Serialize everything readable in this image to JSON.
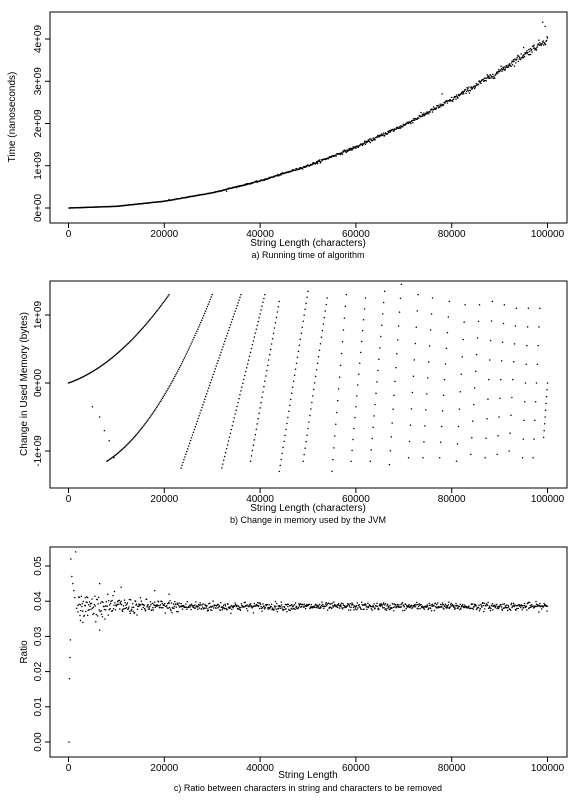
{
  "chart_data": [
    {
      "type": "scatter",
      "title": "",
      "caption": "a) Running time of algorithm",
      "xlabel": "String Length (characters)",
      "ylabel": "Time (nanoseconds)",
      "xlim": [
        0,
        100000
      ],
      "ylim": [
        0,
        4500000000
      ],
      "xticks": [
        0,
        20000,
        40000,
        60000,
        80000,
        100000
      ],
      "xtick_labels": [
        "0",
        "20000",
        "40000",
        "60000",
        "80000",
        "100000"
      ],
      "yticks": [
        0,
        1000000000,
        2000000000,
        3000000000,
        4000000000
      ],
      "ytick_labels": [
        "0e+00",
        "1e+09",
        "2e+09",
        "3e+09",
        "4e+09"
      ],
      "grid": false,
      "legend": "none",
      "series": [
        {
          "description_points": [
            [
              0,
              0
            ],
            [
              10000,
              40000000
            ],
            [
              20000,
              160000000
            ],
            [
              30000,
              360000000
            ],
            [
              40000,
              640000000
            ],
            [
              50000,
              1000000000
            ],
            [
              60000,
              1440000000
            ],
            [
              70000,
              1960000000
            ],
            [
              80000,
              2560000000
            ],
            [
              90000,
              3240000000
            ],
            [
              100000,
              4000000000
            ]
          ],
          "outliers": [
            [
              21000,
              200000000
            ],
            [
              33000,
              400000000
            ],
            [
              36000,
              520000000
            ],
            [
              52000,
              1050000000
            ],
            [
              78000,
              2700000000
            ],
            [
              95000,
              3800000000
            ],
            [
              99000,
              4400000000
            ],
            [
              99500,
              4300000000
            ]
          ]
        }
      ]
    },
    {
      "type": "scatter",
      "title": "",
      "caption": "b) Change in memory used by the JVM",
      "xlabel": "String Length (characters)",
      "ylabel": "Change in Used Memory (bytes)",
      "xlim": [
        0,
        100000
      ],
      "ylim": [
        -1350000000,
        1400000000
      ],
      "xticks": [
        0,
        20000,
        40000,
        60000,
        80000,
        100000
      ],
      "xtick_labels": [
        "0",
        "20000",
        "40000",
        "60000",
        "80000",
        "100000"
      ],
      "yticks": [
        -1000000000,
        0,
        1000000000
      ],
      "ytick_labels": [
        "-1e+09",
        "0e+00",
        "1e+09"
      ],
      "grid": false,
      "legend": "none",
      "segments": [
        {
          "x0": 0,
          "x1": 21000,
          "y0": 0,
          "y1": 1300000000,
          "shape": "curve"
        },
        {
          "x0": 8000,
          "x1": 30000,
          "y0": -1150000000,
          "y1": 1300000000,
          "shape": "curve"
        },
        {
          "x0": 23500,
          "x1": 36000,
          "y0": -1250000000,
          "y1": 1300000000
        },
        {
          "x0": 32000,
          "x1": 41000,
          "y0": -1250000000,
          "y1": 1300000000
        },
        {
          "x0": 38000,
          "x1": 44000,
          "y0": -1150000000,
          "y1": 1200000000
        },
        {
          "x0": 44000,
          "x1": 50000,
          "y0": -1300000000,
          "y1": 1350000000
        },
        {
          "x0": 49000,
          "x1": 54000,
          "y0": -1150000000,
          "y1": 1250000000
        },
        {
          "x0": 55000,
          "x1": 58000,
          "y0": -1300000000,
          "y1": 1300000000
        },
        {
          "x0": 59000,
          "x1": 62000,
          "y0": -1150000000,
          "y1": 1250000000
        },
        {
          "x0": 63000,
          "x1": 66000,
          "y0": -1150000000,
          "y1": 1350000000
        },
        {
          "x0": 67000,
          "x1": 69500,
          "y0": -1200000000,
          "y1": 1450000000
        },
        {
          "x0": 71000,
          "x1": 73000,
          "y0": -1100000000,
          "y1": 1300000000
        },
        {
          "x0": 74000,
          "x1": 76000,
          "y0": -1100000000,
          "y1": 1250000000
        },
        {
          "x0": 77500,
          "x1": 79500,
          "y0": -1100000000,
          "y1": 1200000000
        },
        {
          "x0": 81000,
          "x1": 82800,
          "y0": -1150000000,
          "y1": 1150000000
        },
        {
          "x0": 84000,
          "x1": 85800,
          "y0": -1050000000,
          "y1": 1150000000
        },
        {
          "x0": 87000,
          "x1": 88500,
          "y0": -1100000000,
          "y1": 1200000000
        },
        {
          "x0": 89500,
          "x1": 91000,
          "y0": -1050000000,
          "y1": 1150000000
        },
        {
          "x0": 92000,
          "x1": 93500,
          "y0": -1000000000,
          "y1": 1100000000
        },
        {
          "x0": 94800,
          "x1": 96000,
          "y0": -1100000000,
          "y1": 1100000000
        },
        {
          "x0": 97000,
          "x1": 98400,
          "y0": -1100000000,
          "y1": 1100000000
        },
        {
          "x0": 99200,
          "x1": 100000,
          "y0": -800000000,
          "y1": 0
        }
      ],
      "stray_points": [
        [
          6500,
          -500000000
        ],
        [
          7500,
          -700000000
        ],
        [
          8500,
          -850000000
        ],
        [
          9500,
          -1100000000
        ],
        [
          5000,
          -350000000
        ]
      ]
    },
    {
      "type": "scatter",
      "title": "",
      "caption": "c) Ratio between characters in string and characters to be removed",
      "xlabel": "String Length",
      "ylabel": "Ratio",
      "xlim": [
        0,
        100000
      ],
      "ylim": [
        0,
        0.055
      ],
      "xticks": [
        0,
        20000,
        40000,
        60000,
        80000,
        100000
      ],
      "xtick_labels": [
        "0",
        "20000",
        "40000",
        "60000",
        "80000",
        "100000"
      ],
      "yticks": [
        0,
        0.01,
        0.02,
        0.03,
        0.04,
        0.05
      ],
      "ytick_labels": [
        "0.00",
        "0.01",
        "0.02",
        "0.03",
        "0.04",
        "0.05"
      ],
      "grid": false,
      "legend": "none",
      "center_value": 0.0385,
      "early_points": [
        [
          100,
          0.0
        ],
        [
          200,
          0.018
        ],
        [
          300,
          0.024
        ],
        [
          400,
          0.029
        ],
        [
          500,
          0.052
        ],
        [
          700,
          0.047
        ],
        [
          900,
          0.045
        ],
        [
          1100,
          0.043
        ],
        [
          1300,
          0.041
        ],
        [
          1500,
          0.054
        ],
        [
          1700,
          0.038
        ],
        [
          2000,
          0.037
        ],
        [
          2500,
          0.039
        ],
        [
          3000,
          0.034
        ],
        [
          3500,
          0.041
        ],
        [
          4000,
          0.036
        ],
        [
          6500,
          0.045
        ],
        [
          11000,
          0.044
        ],
        [
          18000,
          0.043
        ],
        [
          21000,
          0.042
        ]
      ]
    }
  ]
}
